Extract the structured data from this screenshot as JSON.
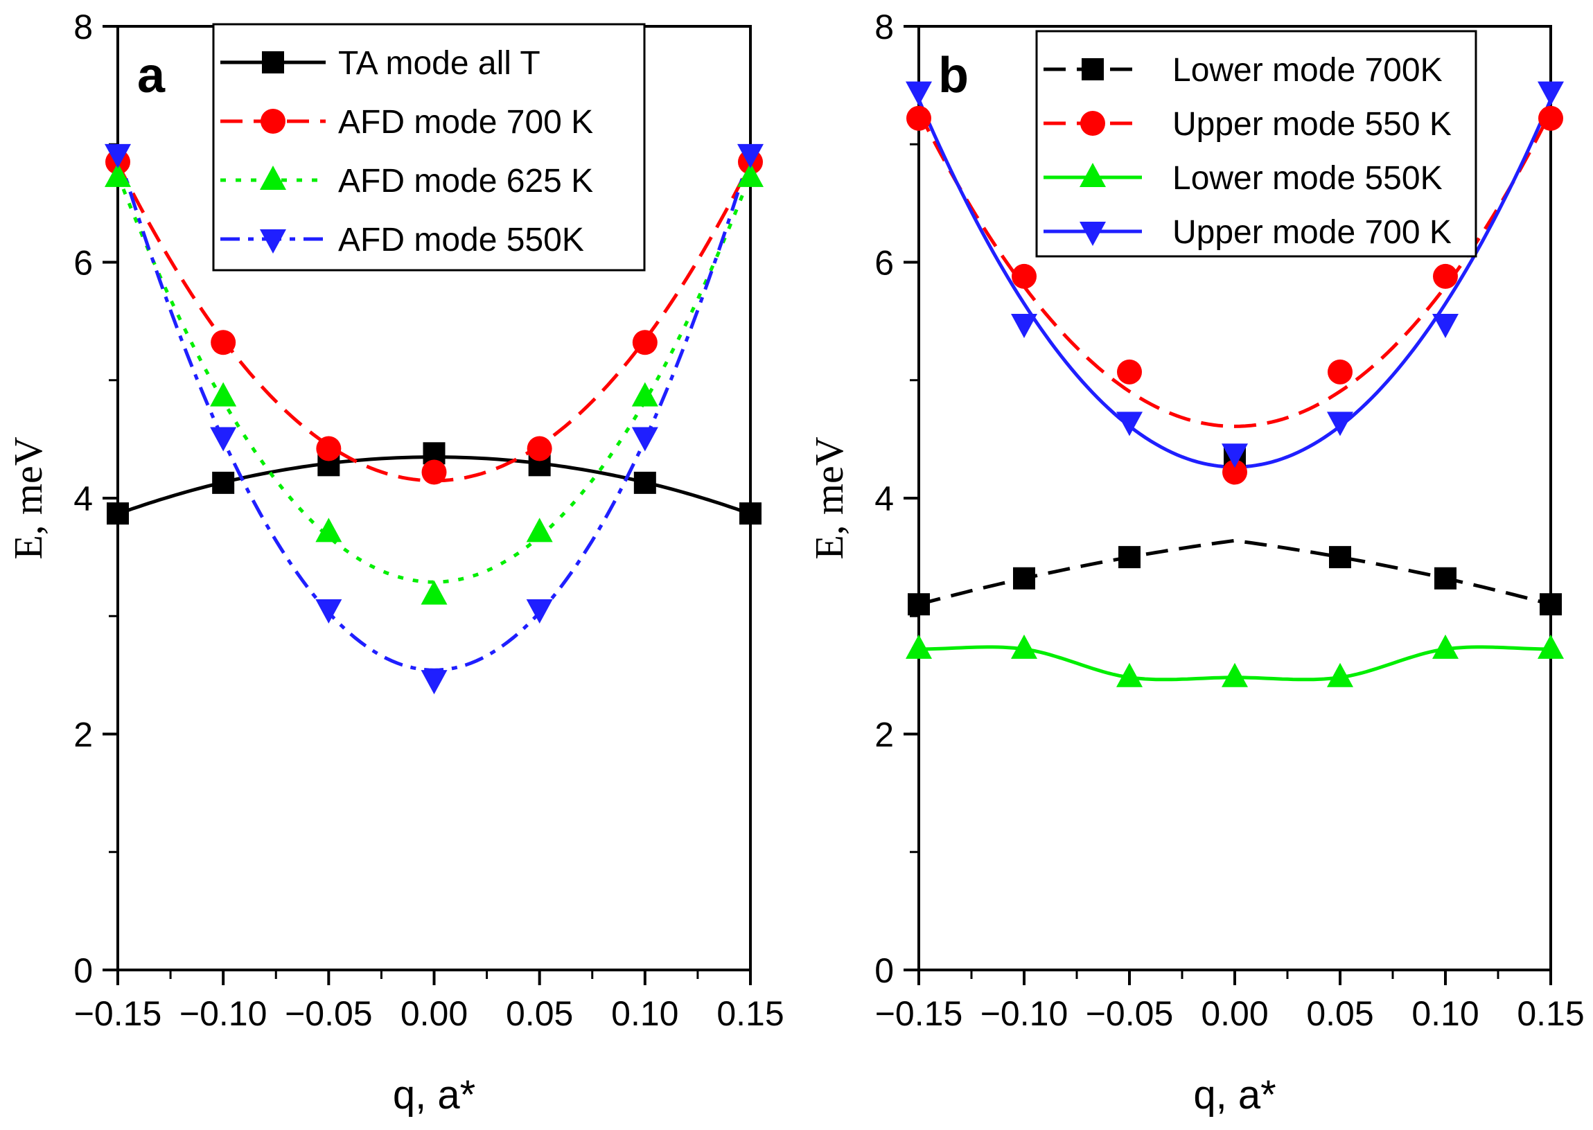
{
  "chart_data": [
    {
      "type": "line",
      "panel": "a",
      "xlabel": "q, a*",
      "ylabel": "E, meV",
      "xlim": [
        -0.15,
        0.15
      ],
      "ylim": [
        0,
        8
      ],
      "xticks": [
        "−0.15",
        "−0.10",
        "−0.05",
        "0.00",
        "0.05",
        "0.10",
        "0.15"
      ],
      "yticks": [
        "0",
        "2",
        "4",
        "6",
        "8"
      ],
      "legend_position": "top",
      "series": [
        {
          "name": "TA mode all T",
          "color": "#000000",
          "marker": "square",
          "dash": "solid",
          "x": [
            -0.15,
            -0.1,
            -0.05,
            0.0,
            0.05,
            0.1,
            0.15
          ],
          "y": [
            3.87,
            4.13,
            4.28,
            4.38,
            4.28,
            4.13,
            3.87
          ]
        },
        {
          "name": "AFD mode 700 K",
          "color": "#ff0000",
          "marker": "circle",
          "dash": "dashed",
          "x": [
            -0.15,
            -0.1,
            -0.05,
            0.0,
            0.05,
            0.1,
            0.15
          ],
          "y": [
            6.85,
            5.32,
            4.42,
            4.22,
            4.42,
            5.32,
            6.85
          ]
        },
        {
          "name": "AFD mode 625 K",
          "color": "#00ee00",
          "marker": "triangle-up",
          "dash": "dotted",
          "x": [
            -0.15,
            -0.1,
            -0.05,
            0.0,
            0.05,
            0.1,
            0.15
          ],
          "y": [
            6.72,
            4.86,
            3.71,
            3.18,
            3.71,
            4.86,
            6.72
          ]
        },
        {
          "name": "AFD mode 550K",
          "color": "#1f1fff",
          "marker": "triangle-down",
          "dash": "dashdot",
          "x": [
            -0.15,
            -0.1,
            -0.05,
            0.0,
            0.05,
            0.1,
            0.15
          ],
          "y": [
            6.92,
            4.52,
            3.06,
            2.46,
            3.06,
            4.52,
            6.92
          ]
        }
      ]
    },
    {
      "type": "line",
      "panel": "b",
      "xlabel": "q, a*",
      "ylabel": "E, meV",
      "xlim": [
        -0.15,
        0.15
      ],
      "ylim": [
        0,
        8
      ],
      "xticks": [
        "−0.15",
        "−0.10",
        "−0.05",
        "0.00",
        "0.05",
        "0.10",
        "0.15"
      ],
      "yticks": [
        "0",
        "2",
        "4",
        "6",
        "8"
      ],
      "legend_position": "top",
      "series": [
        {
          "name": "Lower mode 700K",
          "color": "#000000",
          "marker": "square",
          "dash": "dashed",
          "x": [
            -0.15,
            -0.1,
            -0.05,
            0.0,
            0.05,
            0.1,
            0.15
          ],
          "y": [
            3.1,
            3.32,
            3.5,
            4.35,
            3.5,
            3.32,
            3.1
          ]
        },
        {
          "name": "Upper mode 550 K",
          "color": "#ff0000",
          "marker": "circle",
          "dash": "dashed",
          "x": [
            -0.15,
            -0.1,
            -0.05,
            0.0,
            0.05,
            0.1,
            0.15
          ],
          "y": [
            7.22,
            5.88,
            5.07,
            4.22,
            5.07,
            5.88,
            7.22
          ]
        },
        {
          "name": "Lower mode 550K",
          "color": "#00ee00",
          "marker": "triangle-up",
          "dash": "solid",
          "x": [
            -0.15,
            -0.1,
            -0.05,
            0.0,
            0.05,
            0.1,
            0.15
          ],
          "y": [
            2.72,
            2.72,
            2.48,
            2.48,
            2.48,
            2.72,
            2.72
          ]
        },
        {
          "name": "Upper mode 700 K",
          "color": "#1f1fff",
          "marker": "triangle-down",
          "dash": "solid",
          "x": [
            -0.15,
            -0.1,
            -0.05,
            0.0,
            0.05,
            0.1,
            0.15
          ],
          "y": [
            7.45,
            5.48,
            4.65,
            4.38,
            4.65,
            5.48,
            7.45
          ]
        }
      ]
    }
  ]
}
